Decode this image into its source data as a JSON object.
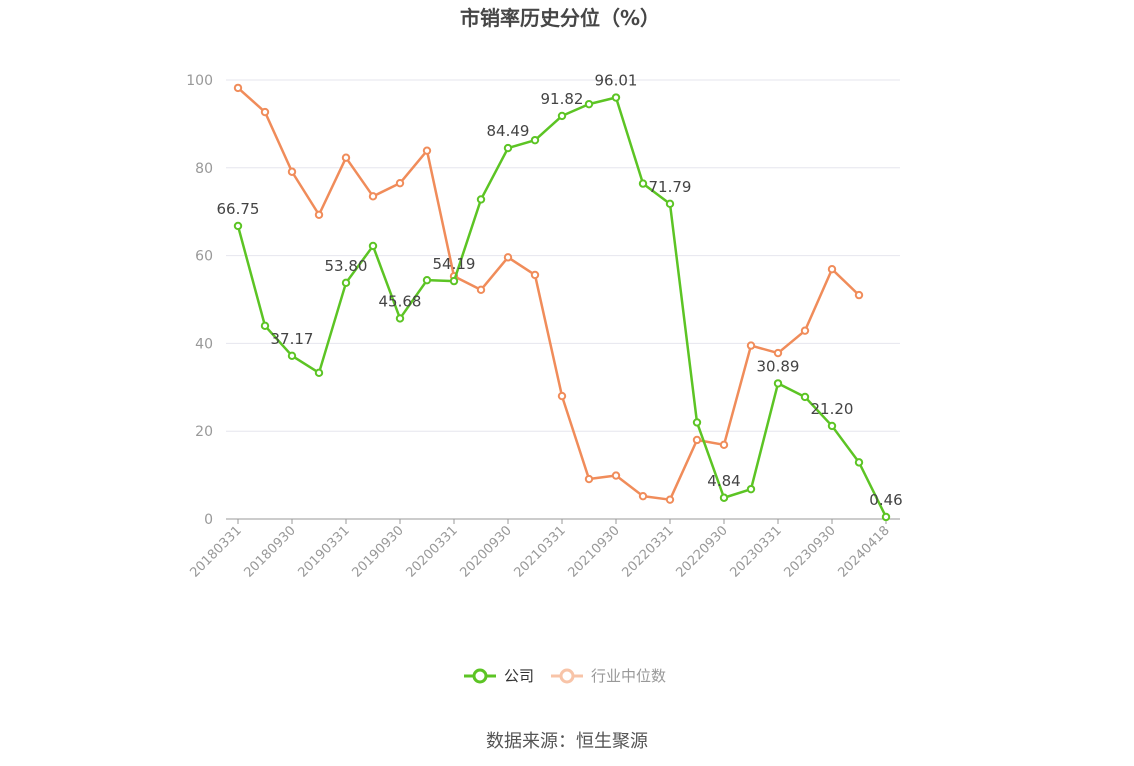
{
  "chart_data": {
    "type": "line",
    "title": "市销率历史分位（%）",
    "source": "数据来源：恒生聚源",
    "ylim": [
      0,
      100
    ],
    "yticks": [
      "0",
      "20",
      "40",
      "60",
      "80",
      "100"
    ],
    "grid": true,
    "legend_position": "bottom",
    "x": [
      "20180331",
      "20180630",
      "20180930",
      "20181231",
      "20190331",
      "20190630",
      "20190930",
      "20191231",
      "20200331",
      "20200630",
      "20200930",
      "20201231",
      "20210331",
      "20210630",
      "20210930",
      "20211231",
      "20220331",
      "20220630",
      "20220930",
      "20221231",
      "20230331",
      "20230630",
      "20230930",
      "20231231",
      "20240418"
    ],
    "xtick_labels": [
      "20180331",
      "20180930",
      "20190331",
      "20190930",
      "20200331",
      "20200930",
      "20210331",
      "20210930",
      "20220331",
      "20220930",
      "20230331",
      "20230930",
      "20240418"
    ],
    "series": [
      {
        "name": "公司",
        "color": "#5cc424",
        "values": [
          66.75,
          44.0,
          37.17,
          33.3,
          53.8,
          62.2,
          45.68,
          54.4,
          54.19,
          72.8,
          84.49,
          86.3,
          91.82,
          94.5,
          96.01,
          76.4,
          71.79,
          22.0,
          4.84,
          6.8,
          30.89,
          27.8,
          21.2,
          12.9,
          0.46
        ],
        "labels": {
          "0": "66.75",
          "2": "37.17",
          "4": "53.80",
          "6": "45.68",
          "8": "54.19",
          "10": "84.49",
          "12": "91.82",
          "14": "96.01",
          "16": "71.79",
          "18": "4.84",
          "20": "30.89",
          "22": "21.20",
          "24": "0.46"
        }
      },
      {
        "name": "行业中位数",
        "color": "#f08c5a",
        "values": [
          98.2,
          92.7,
          79.1,
          69.3,
          82.3,
          73.5,
          76.5,
          83.9,
          55.3,
          52.2,
          59.6,
          55.6,
          28.0,
          9.1,
          9.9,
          5.2,
          4.4,
          18.0,
          16.9,
          39.5,
          37.8,
          42.9,
          56.9,
          51.0,
          null
        ]
      }
    ]
  }
}
